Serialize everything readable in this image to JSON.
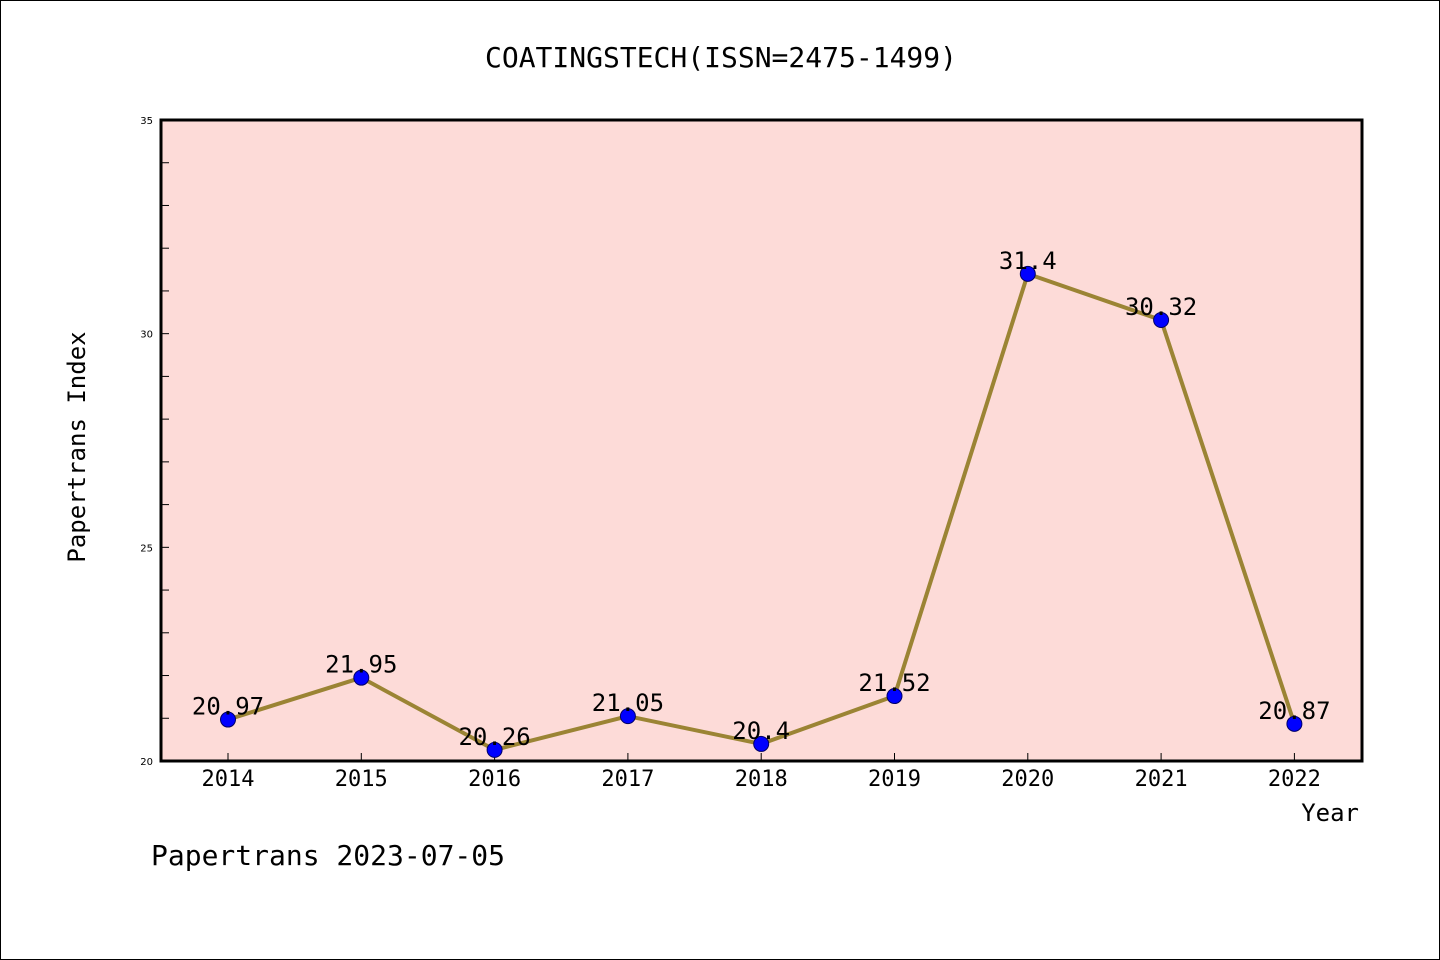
{
  "chart_data": {
    "type": "line",
    "title": "COATINGSTECH(ISSN=2475-1499)",
    "xlabel": "Year",
    "ylabel": "Papertrans Index",
    "categories": [
      "2014",
      "2015",
      "2016",
      "2017",
      "2018",
      "2019",
      "2020",
      "2021",
      "2022"
    ],
    "series": [
      {
        "values": [
          20.97,
          21.95,
          20.26,
          21.05,
          20.4,
          21.52,
          31.4,
          30.32,
          20.87
        ],
        "data_labels": [
          "20.97",
          "21.95",
          "20.26",
          "21.05",
          "20.4",
          "21.52",
          "31.4",
          "30.32",
          "20.87"
        ]
      }
    ],
    "ylim": [
      20,
      35
    ],
    "yticks": [
      20,
      25,
      30,
      35
    ],
    "grid": false,
    "legend": "none",
    "colors": {
      "plot_background": "#fddbd8",
      "line": "#9b8434",
      "marker": "#0000ff"
    }
  },
  "footer": {
    "text": "Papertrans 2023-07-05"
  }
}
